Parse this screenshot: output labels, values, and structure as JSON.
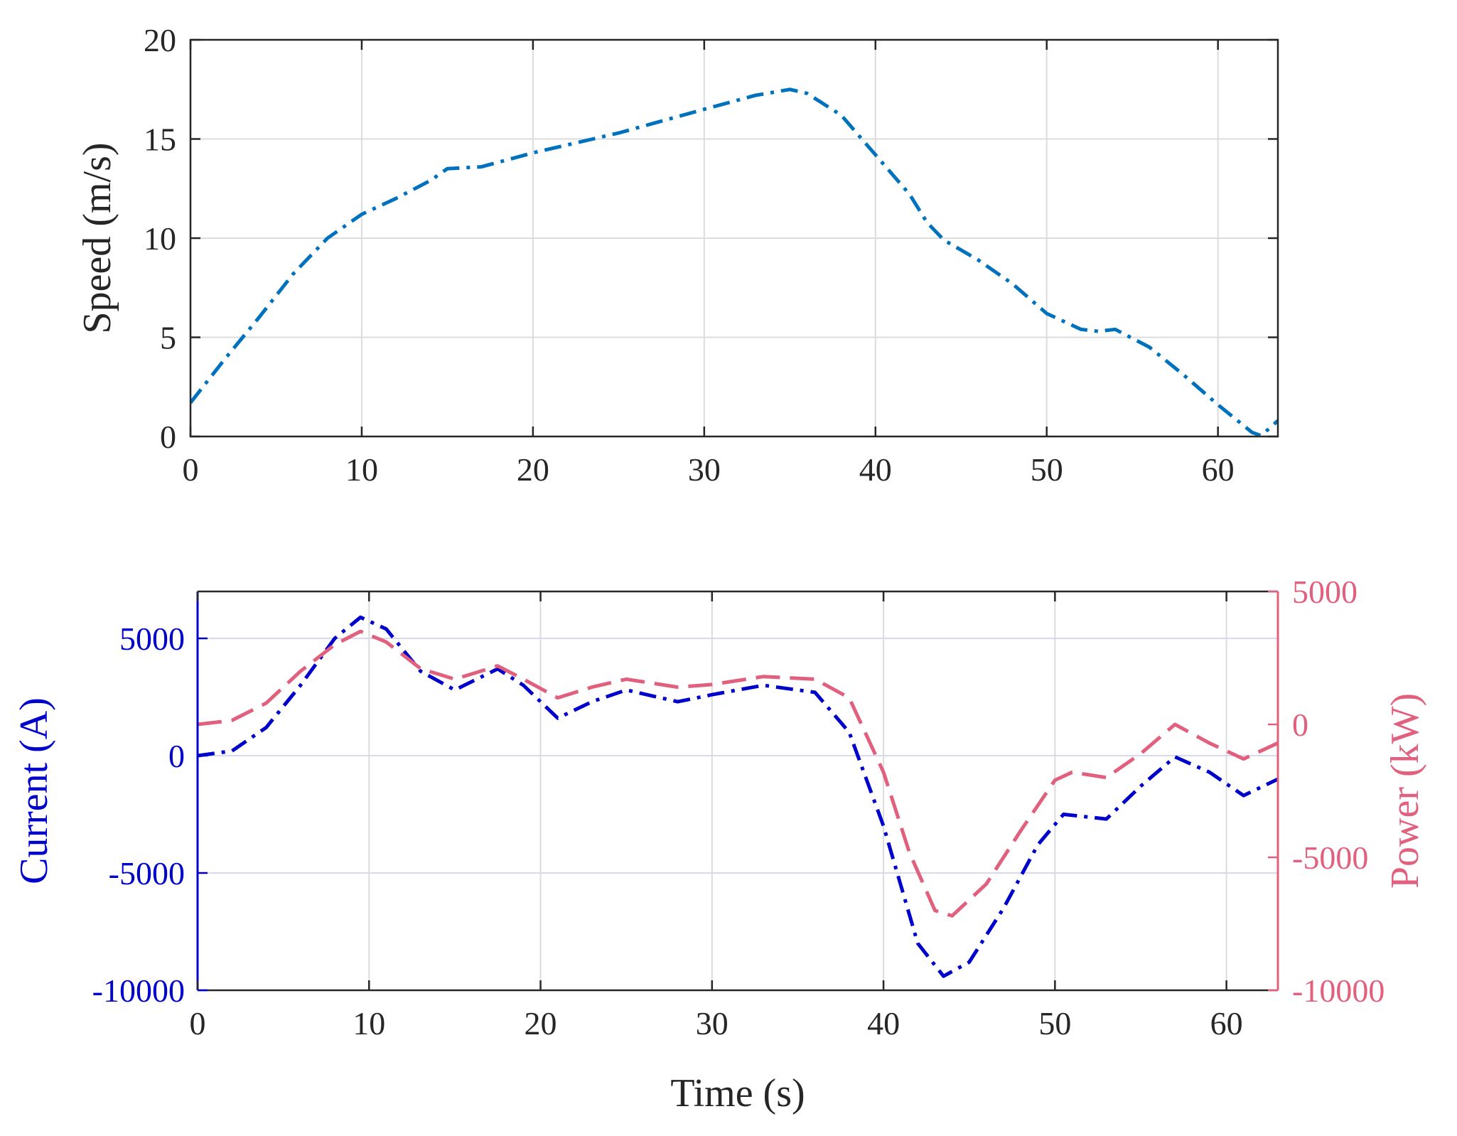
{
  "colors": {
    "speed": "#0072BD",
    "current": "#0000CC",
    "power": "#E0607E",
    "axis": "#262626",
    "grid_top": "#DCDCDC",
    "grid_bottom": "#D8D8EE"
  },
  "chart_data": [
    {
      "type": "line",
      "ylabel": "Speed (m/s)",
      "xlim": [
        0,
        63.5
      ],
      "ylim": [
        0,
        20
      ],
      "x_ticks": [
        "0",
        "10",
        "20",
        "30",
        "40",
        "50",
        "60"
      ],
      "y_ticks": [
        "0",
        "5",
        "10",
        "15",
        "20"
      ],
      "grid": true,
      "series": [
        {
          "line_style": "dash-dot",
          "color": "#0072BD",
          "points": [
            [
              0,
              1.7
            ],
            [
              2,
              3.9
            ],
            [
              4,
              6.0
            ],
            [
              6,
              8.2
            ],
            [
              8,
              10.0
            ],
            [
              10,
              11.2
            ],
            [
              12,
              12.0
            ],
            [
              14,
              12.9
            ],
            [
              15,
              13.5
            ],
            [
              17,
              13.6
            ],
            [
              20,
              14.3
            ],
            [
              25,
              15.3
            ],
            [
              30,
              16.5
            ],
            [
              33,
              17.2
            ],
            [
              35,
              17.5
            ],
            [
              36,
              17.3
            ],
            [
              38,
              16.2
            ],
            [
              40,
              14.2
            ],
            [
              42,
              12.2
            ],
            [
              43,
              10.8
            ],
            [
              44,
              9.9
            ],
            [
              46,
              8.9
            ],
            [
              48,
              7.7
            ],
            [
              50,
              6.2
            ],
            [
              52,
              5.4
            ],
            [
              53,
              5.3
            ],
            [
              54,
              5.4
            ],
            [
              56,
              4.5
            ],
            [
              58,
              3.1
            ],
            [
              60,
              1.6
            ],
            [
              61,
              0.9
            ],
            [
              62,
              0.2
            ],
            [
              62.5,
              0.05
            ],
            [
              63,
              0.4
            ],
            [
              63.5,
              0.8
            ]
          ]
        }
      ]
    },
    {
      "type": "line",
      "xlabel": "Time (s)",
      "ylabel": "Current (A)",
      "y2label": "Power (kW)",
      "xlim": [
        0,
        63
      ],
      "ylim": [
        -10000,
        7000
      ],
      "y2lim": [
        -10000,
        5000
      ],
      "x_ticks": [
        "0",
        "10",
        "20",
        "30",
        "40",
        "50",
        "60"
      ],
      "y_ticks": [
        "-10000",
        "-5000",
        "0",
        "5000"
      ],
      "y2_ticks": [
        "-10000",
        "-5000",
        "0",
        "5000"
      ],
      "grid": true,
      "series": [
        {
          "axis": "left",
          "line_style": "dash-dot",
          "color": "#0000CC",
          "points": [
            [
              0,
              0
            ],
            [
              2,
              200
            ],
            [
              4,
              1200
            ],
            [
              6,
              3000
            ],
            [
              8,
              5000
            ],
            [
              9.5,
              5900
            ],
            [
              11,
              5400
            ],
            [
              13,
              3600
            ],
            [
              15,
              2800
            ],
            [
              17.5,
              3700
            ],
            [
              19,
              3000
            ],
            [
              21,
              1600
            ],
            [
              23,
              2300
            ],
            [
              25,
              2800
            ],
            [
              28,
              2300
            ],
            [
              30,
              2600
            ],
            [
              33,
              3000
            ],
            [
              36,
              2700
            ],
            [
              38,
              1000
            ],
            [
              40,
              -3000
            ],
            [
              42,
              -8000
            ],
            [
              43.5,
              -9400
            ],
            [
              45,
              -8800
            ],
            [
              47,
              -6500
            ],
            [
              49,
              -3800
            ],
            [
              50.5,
              -2500
            ],
            [
              53,
              -2700
            ],
            [
              55,
              -1300
            ],
            [
              57,
              -50
            ],
            [
              59,
              -700
            ],
            [
              61,
              -1700
            ],
            [
              63,
              -1000
            ]
          ]
        },
        {
          "axis": "right",
          "line_style": "dashed",
          "color": "#E0607E",
          "points": [
            [
              0,
              0
            ],
            [
              2,
              150
            ],
            [
              4,
              800
            ],
            [
              6,
              2000
            ],
            [
              8,
              3000
            ],
            [
              9.5,
              3500
            ],
            [
              11,
              3100
            ],
            [
              13,
              2100
            ],
            [
              15,
              1700
            ],
            [
              17.5,
              2200
            ],
            [
              19,
              1700
            ],
            [
              21,
              1000
            ],
            [
              23,
              1400
            ],
            [
              25,
              1700
            ],
            [
              28,
              1400
            ],
            [
              30,
              1500
            ],
            [
              33,
              1800
            ],
            [
              36,
              1700
            ],
            [
              38,
              1000
            ],
            [
              40,
              -1800
            ],
            [
              41.5,
              -4800
            ],
            [
              43,
              -7000
            ],
            [
              44,
              -7200
            ],
            [
              46,
              -6000
            ],
            [
              48,
              -4000
            ],
            [
              50,
              -2100
            ],
            [
              51,
              -1800
            ],
            [
              53,
              -2000
            ],
            [
              55,
              -1100
            ],
            [
              57,
              0
            ],
            [
              59,
              -700
            ],
            [
              61,
              -1300
            ],
            [
              63,
              -700
            ]
          ]
        }
      ]
    }
  ]
}
